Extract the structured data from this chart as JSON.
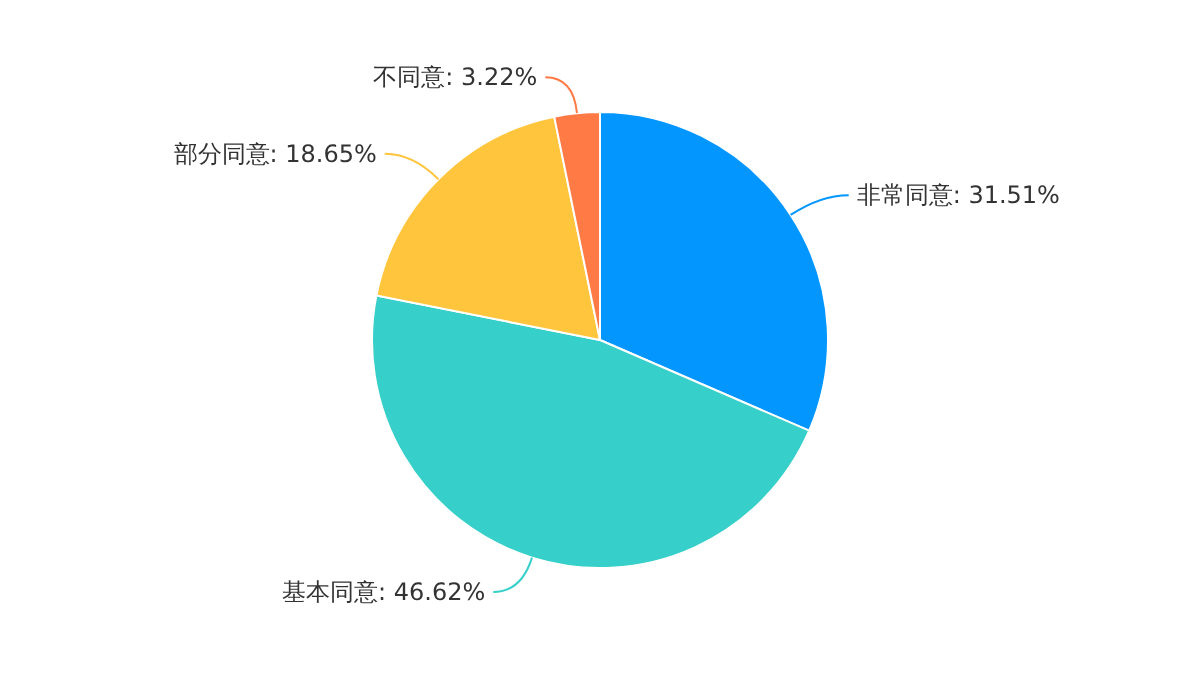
{
  "chart_data": {
    "type": "pie",
    "categories": [
      "非常同意",
      "基本同意",
      "部分同意",
      "不同意"
    ],
    "values": [
      31.51,
      46.62,
      18.65,
      3.22
    ],
    "value_labels": [
      "31.51%",
      "46.62%",
      "18.65%",
      "3.22%"
    ],
    "colors": [
      "#0396ff",
      "#36cfc9",
      "#ffc53d",
      "#ff7a45"
    ]
  }
}
